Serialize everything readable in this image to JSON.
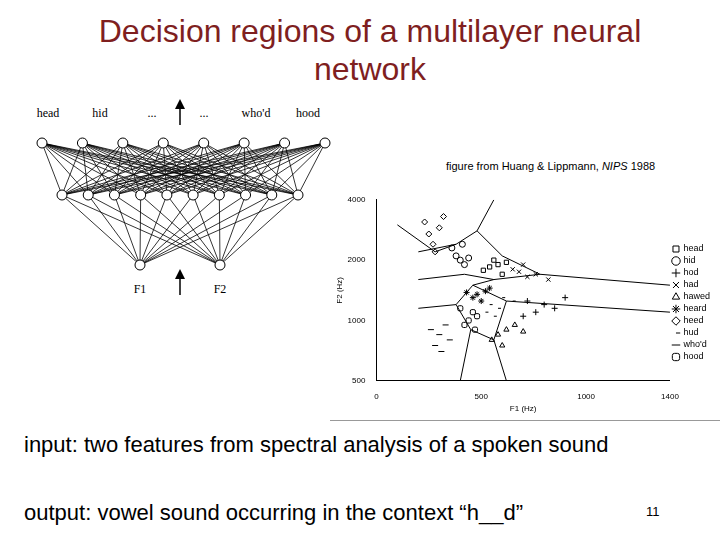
{
  "title": "Decision regions of a multilayer neural network",
  "network": {
    "output_labels": [
      "head",
      "hid",
      "...",
      "...",
      "who'd",
      "hood"
    ],
    "input_labels": [
      "F1",
      "F2"
    ]
  },
  "credit": {
    "before": "figure from Huang  & Lippmann, ",
    "italic": "NIPS",
    "after": " 1988"
  },
  "chart_data": {
    "type": "scatter",
    "x_label": "F1 (Hz)",
    "y_label": "F2 (Hz)",
    "xlim": [
      0,
      1400
    ],
    "xticks": [
      0,
      500,
      1000,
      1400
    ],
    "ylim": [
      500,
      4000
    ],
    "yticks": [
      500,
      1000,
      2000,
      4000
    ],
    "log": "y",
    "grid": false,
    "legend": "right",
    "series": [
      {
        "name": "head",
        "color": "#000000",
        "marker": "square",
        "x": [
          540,
          580,
          510,
          600,
          560,
          620
        ],
        "y": [
          1850,
          1900,
          1780,
          1700,
          2000,
          1950
        ]
      },
      {
        "name": "hid",
        "color": "#000000",
        "marker": "circle",
        "x": [
          400,
          380,
          420,
          360,
          440,
          410
        ],
        "y": [
          2000,
          2100,
          1900,
          2300,
          2050,
          2400
        ]
      },
      {
        "name": "hod",
        "color": "#000000",
        "marker": "plus",
        "x": [
          760,
          800,
          700,
          850,
          720,
          900
        ],
        "y": [
          1100,
          1200,
          1050,
          1150,
          1250,
          1300
        ]
      },
      {
        "name": "had",
        "color": "#000000",
        "marker": "x",
        "x": [
          680,
          720,
          650,
          760,
          820,
          700
        ],
        "y": [
          1750,
          1650,
          1800,
          1700,
          1600,
          1900
        ]
      },
      {
        "name": "hawed",
        "color": "#000000",
        "marker": "triangle",
        "x": [
          580,
          620,
          550,
          660,
          600,
          700
        ],
        "y": [
          850,
          900,
          800,
          950,
          750,
          880
        ]
      },
      {
        "name": "heard",
        "color": "#000000",
        "marker": "star",
        "x": [
          480,
          520,
          460,
          540,
          500,
          430
        ],
        "y": [
          1350,
          1400,
          1300,
          1450,
          1250,
          1380
        ]
      },
      {
        "name": "heed",
        "color": "#000000",
        "marker": "diamond",
        "x": [
          270,
          250,
          300,
          230,
          280,
          320
        ],
        "y": [
          2400,
          2700,
          2900,
          3100,
          2200,
          3300
        ]
      },
      {
        "name": "hud",
        "color": "#000000",
        "marker": "dash",
        "x": [
          540,
          600,
          520,
          650,
          580,
          560
        ],
        "y": [
          1200,
          1300,
          1100,
          1250,
          1150,
          1050
        ]
      },
      {
        "name": "who'd",
        "color": "#000000",
        "marker": "line",
        "x": [
          300,
          330,
          280,
          350,
          260,
          310
        ],
        "y": [
          850,
          950,
          750,
          800,
          900,
          700
        ]
      },
      {
        "name": "hood",
        "color": "#000000",
        "marker": "rounded_square",
        "x": [
          440,
          460,
          420,
          480,
          400,
          470
        ],
        "y": [
          1000,
          1100,
          950,
          1050,
          1150,
          900
        ]
      }
    ],
    "decision_boundaries": [
      {
        "x": [
          100,
          280,
          380
        ],
        "y": [
          3000,
          2200,
          2400
        ]
      },
      {
        "x": [
          200,
          380,
          480,
          560
        ],
        "y": [
          2200,
          2400,
          2800,
          4000
        ]
      },
      {
        "x": [
          480,
          600,
          780,
          1400
        ],
        "y": [
          2800,
          2100,
          1700,
          1500
        ]
      },
      {
        "x": [
          420,
          560,
          780
        ],
        "y": [
          1700,
          1600,
          1700
        ]
      },
      {
        "x": [
          200,
          420
        ],
        "y": [
          1600,
          1700
        ]
      },
      {
        "x": [
          200,
          380,
          460,
          560
        ],
        "y": [
          1150,
          1200,
          1500,
          1600
        ]
      },
      {
        "x": [
          380,
          450,
          400
        ],
        "y": [
          1200,
          900,
          500
        ]
      },
      {
        "x": [
          460,
          620,
          1400
        ],
        "y": [
          1500,
          1250,
          1100
        ]
      },
      {
        "x": [
          620,
          560,
          620
        ],
        "y": [
          1250,
          800,
          500
        ]
      },
      {
        "x": [
          450,
          560
        ],
        "y": [
          900,
          800
        ]
      }
    ]
  },
  "input_text": "input: two features from spectral analysis of a spoken sound",
  "output_text": "output: vowel sound occurring in the context “h__d”",
  "page_number": "11"
}
